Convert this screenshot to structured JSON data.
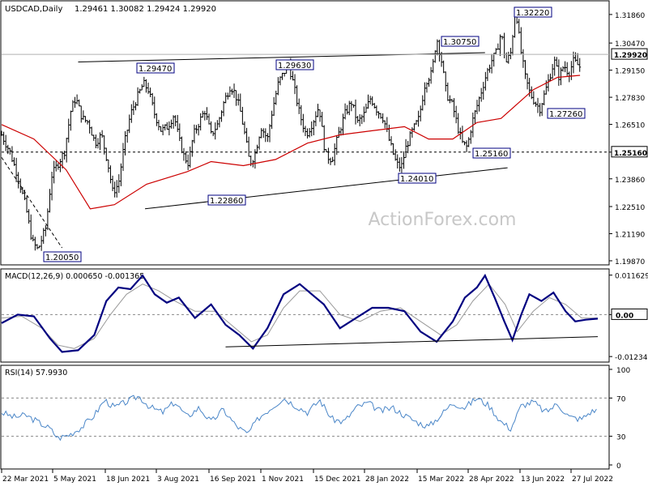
{
  "header": {
    "symbol": "USDCAD,Daily",
    "ohlc": "1.29461 1.30082 1.29424 1.29920"
  },
  "watermark": "ActionForex.com",
  "colors": {
    "bar": "#000000",
    "ma": "#cc0000",
    "macd": "#000080",
    "signal": "#999999",
    "rsi": "#4a86c8",
    "frame": "#000000"
  },
  "chart_data": [
    {
      "type": "ohlc",
      "title": "USDCAD,Daily",
      "ylim": [
        1.1975,
        1.3225
      ],
      "y_ticks": [
        "1.31860",
        "1.30470",
        "1.29150",
        "1.27830",
        "1.26510",
        "1.25160",
        "1.23860",
        "1.22510",
        "1.21190",
        "1.19870"
      ],
      "current_price": "1.29920",
      "hline_dotted": "1.25160",
      "x_ticks": [
        "22 Mar 2021",
        "5 May 2021",
        "18 Jun 2021",
        "3 Aug 2021",
        "16 Sep 2021",
        "1 Nov 2021",
        "15 Dec 2021",
        "28 Jan 2022",
        "15 Mar 2022",
        "28 Apr 2022",
        "13 Jun 2022",
        "27 Jul 2022"
      ],
      "annotations": [
        "1.20050",
        "1.29470",
        "1.22860",
        "1.29630",
        "1.24010",
        "1.30750",
        "1.25160",
        "1.32220",
        "1.27260"
      ],
      "close_path": [
        [
          0,
          1.26
        ],
        [
          10,
          1.252
        ],
        [
          20,
          1.24
        ],
        [
          30,
          1.225
        ],
        [
          38,
          1.208
        ],
        [
          45,
          1.204
        ],
        [
          55,
          1.215
        ],
        [
          62,
          1.24
        ],
        [
          70,
          1.246
        ],
        [
          78,
          1.252
        ],
        [
          86,
          1.272
        ],
        [
          92,
          1.278
        ],
        [
          100,
          1.268
        ],
        [
          108,
          1.266
        ],
        [
          116,
          1.256
        ],
        [
          124,
          1.26
        ],
        [
          132,
          1.246
        ],
        [
          138,
          1.232
        ],
        [
          145,
          1.236
        ],
        [
          152,
          1.255
        ],
        [
          160,
          1.27
        ],
        [
          168,
          1.278
        ],
        [
          176,
          1.285
        ],
        [
          182,
          1.282
        ],
        [
          190,
          1.27
        ],
        [
          198,
          1.262
        ],
        [
          206,
          1.264
        ],
        [
          214,
          1.27
        ],
        [
          220,
          1.258
        ],
        [
          226,
          1.25
        ],
        [
          232,
          1.246
        ],
        [
          238,
          1.26
        ],
        [
          245,
          1.266
        ],
        [
          252,
          1.272
        ],
        [
          260,
          1.26
        ],
        [
          268,
          1.265
        ],
        [
          276,
          1.276
        ],
        [
          284,
          1.284
        ],
        [
          290,
          1.28
        ],
        [
          296,
          1.272
        ],
        [
          302,
          1.26
        ],
        [
          308,
          1.246
        ],
        [
          314,
          1.25
        ],
        [
          322,
          1.264
        ],
        [
          330,
          1.258
        ],
        [
          336,
          1.272
        ],
        [
          344,
          1.286
        ],
        [
          350,
          1.29
        ],
        [
          356,
          1.295
        ],
        [
          362,
          1.285
        ],
        [
          370,
          1.27
        ],
        [
          378,
          1.26
        ],
        [
          386,
          1.266
        ],
        [
          394,
          1.274
        ],
        [
          402,
          1.25
        ],
        [
          410,
          1.248
        ],
        [
          418,
          1.26
        ],
        [
          426,
          1.27
        ],
        [
          434,
          1.276
        ],
        [
          442,
          1.266
        ],
        [
          450,
          1.27
        ],
        [
          458,
          1.278
        ],
        [
          466,
          1.272
        ],
        [
          474,
          1.268
        ],
        [
          482,
          1.256
        ],
        [
          490,
          1.246
        ],
        [
          496,
          1.244
        ],
        [
          502,
          1.254
        ],
        [
          510,
          1.262
        ],
        [
          518,
          1.268
        ],
        [
          526,
          1.286
        ],
        [
          534,
          1.29
        ],
        [
          540,
          1.3075
        ],
        [
          546,
          1.296
        ],
        [
          552,
          1.28
        ],
        [
          560,
          1.274
        ],
        [
          566,
          1.264
        ],
        [
          572,
          1.256
        ],
        [
          578,
          1.254
        ],
        [
          584,
          1.266
        ],
        [
          590,
          1.274
        ],
        [
          596,
          1.282
        ],
        [
          602,
          1.29
        ],
        [
          608,
          1.296
        ],
        [
          614,
          1.3
        ],
        [
          620,
          1.31
        ],
        [
          626,
          1.295
        ],
        [
          632,
          1.3
        ],
        [
          638,
          1.3222
        ],
        [
          644,
          1.302
        ],
        [
          650,
          1.288
        ],
        [
          656,
          1.28
        ],
        [
          662,
          1.276
        ],
        [
          668,
          1.2726
        ],
        [
          674,
          1.28
        ],
        [
          680,
          1.288
        ],
        [
          686,
          1.296
        ],
        [
          692,
          1.288
        ],
        [
          698,
          1.294
        ],
        [
          704,
          1.29
        ],
        [
          710,
          1.296
        ],
        [
          718,
          1.293
        ]
      ],
      "ma_path": [
        [
          0,
          1.265
        ],
        [
          40,
          1.258
        ],
        [
          80,
          1.243
        ],
        [
          110,
          1.224
        ],
        [
          140,
          1.226
        ],
        [
          180,
          1.236
        ],
        [
          230,
          1.242
        ],
        [
          260,
          1.247
        ],
        [
          300,
          1.245
        ],
        [
          340,
          1.248
        ],
        [
          380,
          1.256
        ],
        [
          420,
          1.26
        ],
        [
          460,
          1.262
        ],
        [
          500,
          1.264
        ],
        [
          530,
          1.258
        ],
        [
          560,
          1.258
        ],
        [
          590,
          1.266
        ],
        [
          620,
          1.268
        ],
        [
          660,
          1.282
        ],
        [
          690,
          1.288
        ],
        [
          718,
          1.289
        ]
      ],
      "trendlines": [
        {
          "from": [
            95,
            1.2955
          ],
          "to": [
            600,
            1.3
          ],
          "style": "solid"
        },
        {
          "from": [
            178,
            1.224
          ],
          "to": [
            628,
            1.244
          ],
          "style": "solid"
        },
        {
          "from": [
            0,
            1.249
          ],
          "to": [
            75,
            1.205
          ],
          "style": "dashed"
        }
      ]
    },
    {
      "type": "line",
      "title": "MACD(12,26,9) 0.000650 -0.001365",
      "ylim": [
        -0.0135,
        0.0125
      ],
      "y_ticks": [
        "0.011629",
        "0.00",
        "-0.012348"
      ],
      "zero_tick": "0.00",
      "series": [
        {
          "values": [
            [
              0,
              -0.0025
            ],
            [
              20,
              0.0
            ],
            [
              40,
              -0.0005
            ],
            [
              60,
              -0.007
            ],
            [
              75,
              -0.011
            ],
            [
              95,
              -0.0105
            ],
            [
              115,
              -0.006
            ],
            [
              130,
              0.004
            ],
            [
              145,
              0.008
            ],
            [
              160,
              0.0075
            ],
            [
              175,
              0.0115
            ],
            [
              190,
              0.006
            ],
            [
              205,
              0.0035
            ],
            [
              220,
              0.005
            ],
            [
              240,
              -0.001
            ],
            [
              260,
              0.003
            ],
            [
              278,
              -0.003
            ],
            [
              295,
              -0.006
            ],
            [
              312,
              -0.01
            ],
            [
              330,
              -0.004
            ],
            [
              350,
              0.006
            ],
            [
              370,
              0.009
            ],
            [
              385,
              0.006
            ],
            [
              400,
              0.003
            ],
            [
              420,
              -0.004
            ],
            [
              440,
              -0.001
            ],
            [
              460,
              0.002
            ],
            [
              480,
              0.002
            ],
            [
              500,
              0.001
            ],
            [
              520,
              -0.005
            ],
            [
              540,
              -0.008
            ],
            [
              560,
              -0.002
            ],
            [
              575,
              0.005
            ],
            [
              590,
              0.008
            ],
            [
              600,
              0.0115
            ],
            [
              612,
              0.005
            ],
            [
              624,
              -0.002
            ],
            [
              634,
              -0.0075
            ],
            [
              645,
              0.0
            ],
            [
              655,
              0.006
            ],
            [
              670,
              0.004
            ],
            [
              685,
              0.0065
            ],
            [
              700,
              0.001
            ],
            [
              712,
              -0.002
            ],
            [
              725,
              -0.0015
            ],
            [
              740,
              -0.0012
            ]
          ]
        },
        {
          "values": [
            [
              0,
              -0.001
            ],
            [
              25,
              -0.0005
            ],
            [
              50,
              -0.004
            ],
            [
              70,
              -0.009
            ],
            [
              90,
              -0.01
            ],
            [
              115,
              -0.007
            ],
            [
              135,
              0.0
            ],
            [
              155,
              0.006
            ],
            [
              175,
              0.009
            ],
            [
              195,
              0.007
            ],
            [
              215,
              0.004
            ],
            [
              240,
              0.001
            ],
            [
              265,
              0.001
            ],
            [
              285,
              -0.003
            ],
            [
              310,
              -0.008
            ],
            [
              330,
              -0.006
            ],
            [
              350,
              0.002
            ],
            [
              370,
              0.007
            ],
            [
              395,
              0.007
            ],
            [
              420,
              0.0
            ],
            [
              445,
              -0.002
            ],
            [
              470,
              0.001
            ],
            [
              495,
              0.002
            ],
            [
              520,
              -0.002
            ],
            [
              545,
              -0.006
            ],
            [
              565,
              -0.003
            ],
            [
              585,
              0.004
            ],
            [
              605,
              0.009
            ],
            [
              625,
              0.003
            ],
            [
              640,
              -0.005
            ],
            [
              660,
              0.001
            ],
            [
              680,
              0.005
            ],
            [
              700,
              0.003
            ],
            [
              720,
              -0.001
            ],
            [
              740,
              -0.001
            ]
          ]
        }
      ],
      "trendline": {
        "from": [
          278,
          -0.0095
        ],
        "to": [
          740,
          -0.0065
        ]
      }
    },
    {
      "type": "line",
      "title": "RSI(14) 57.9930",
      "ylim": [
        0,
        100
      ],
      "y_ticks": [
        "100",
        "70",
        "30",
        "0"
      ],
      "levels": [
        70,
        30
      ],
      "series": [
        {
          "values": [
            [
              0,
              55
            ],
            [
              15,
              50
            ],
            [
              30,
              52
            ],
            [
              45,
              45
            ],
            [
              60,
              38
            ],
            [
              70,
              28
            ],
            [
              85,
              32
            ],
            [
              100,
              40
            ],
            [
              115,
              52
            ],
            [
              128,
              68
            ],
            [
              140,
              60
            ],
            [
              155,
              66
            ],
            [
              170,
              72
            ],
            [
              185,
              60
            ],
            [
              200,
              55
            ],
            [
              215,
              66
            ],
            [
              230,
              50
            ],
            [
              245,
              60
            ],
            [
              260,
              45
            ],
            [
              275,
              58
            ],
            [
              290,
              42
            ],
            [
              305,
              32
            ],
            [
              320,
              50
            ],
            [
              335,
              60
            ],
            [
              350,
              70
            ],
            [
              365,
              62
            ],
            [
              380,
              55
            ],
            [
              395,
              68
            ],
            [
              410,
              48
            ],
            [
              425,
              45
            ],
            [
              440,
              60
            ],
            [
              455,
              65
            ],
            [
              470,
              56
            ],
            [
              485,
              60
            ],
            [
              500,
              52
            ],
            [
              515,
              45
            ],
            [
              530,
              40
            ],
            [
              545,
              52
            ],
            [
              560,
              65
            ],
            [
              575,
              60
            ],
            [
              590,
              70
            ],
            [
              605,
              62
            ],
            [
              620,
              45
            ],
            [
              632,
              38
            ],
            [
              645,
              62
            ],
            [
              660,
              66
            ],
            [
              675,
              55
            ],
            [
              690,
              64
            ],
            [
              705,
              50
            ],
            [
              720,
              48
            ],
            [
              730,
              55
            ],
            [
              740,
              58
            ]
          ]
        }
      ]
    }
  ]
}
